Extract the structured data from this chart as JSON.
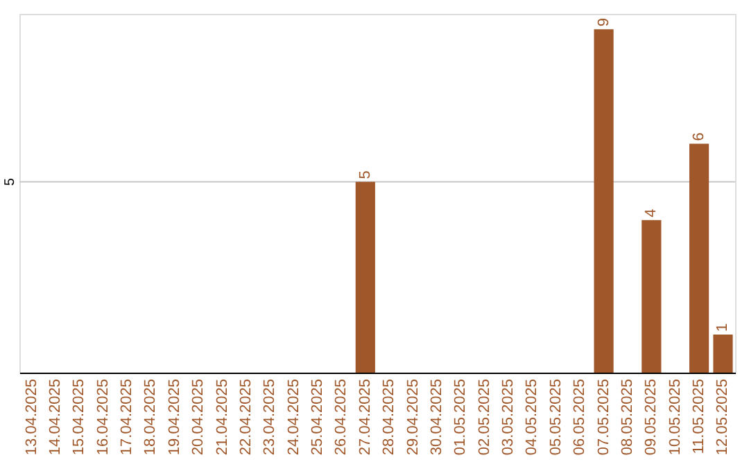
{
  "chart_data": {
    "type": "bar",
    "categories": [
      "13.04.2025",
      "14.04.2025",
      "15.04.2025",
      "16.04.2025",
      "17.04.2025",
      "18.04.2025",
      "19.04.2025",
      "20.04.2025",
      "21.04.2025",
      "22.04.2025",
      "23.04.2025",
      "24.04.2025",
      "25.04.2025",
      "26.04.2025",
      "27.04.2025",
      "28.04.2025",
      "29.04.2025",
      "30.04.2025",
      "01.05.2025",
      "02.05.2025",
      "03.05.2025",
      "04.05.2025",
      "05.05.2025",
      "06.05.2025",
      "07.05.2025",
      "08.05.2025",
      "09.05.2025",
      "10.05.2025",
      "11.05.2025",
      "12.05.2025"
    ],
    "values": [
      null,
      null,
      null,
      null,
      null,
      null,
      null,
      null,
      null,
      null,
      null,
      null,
      null,
      null,
      5,
      null,
      null,
      null,
      null,
      null,
      null,
      null,
      null,
      null,
      9,
      null,
      4,
      null,
      6,
      1
    ],
    "data_labels": true,
    "color": "#a0572a",
    "ref_lines": [
      {
        "axis": "y",
        "value": 5,
        "label": "5",
        "color": "#c8c8c8"
      }
    ]
  }
}
